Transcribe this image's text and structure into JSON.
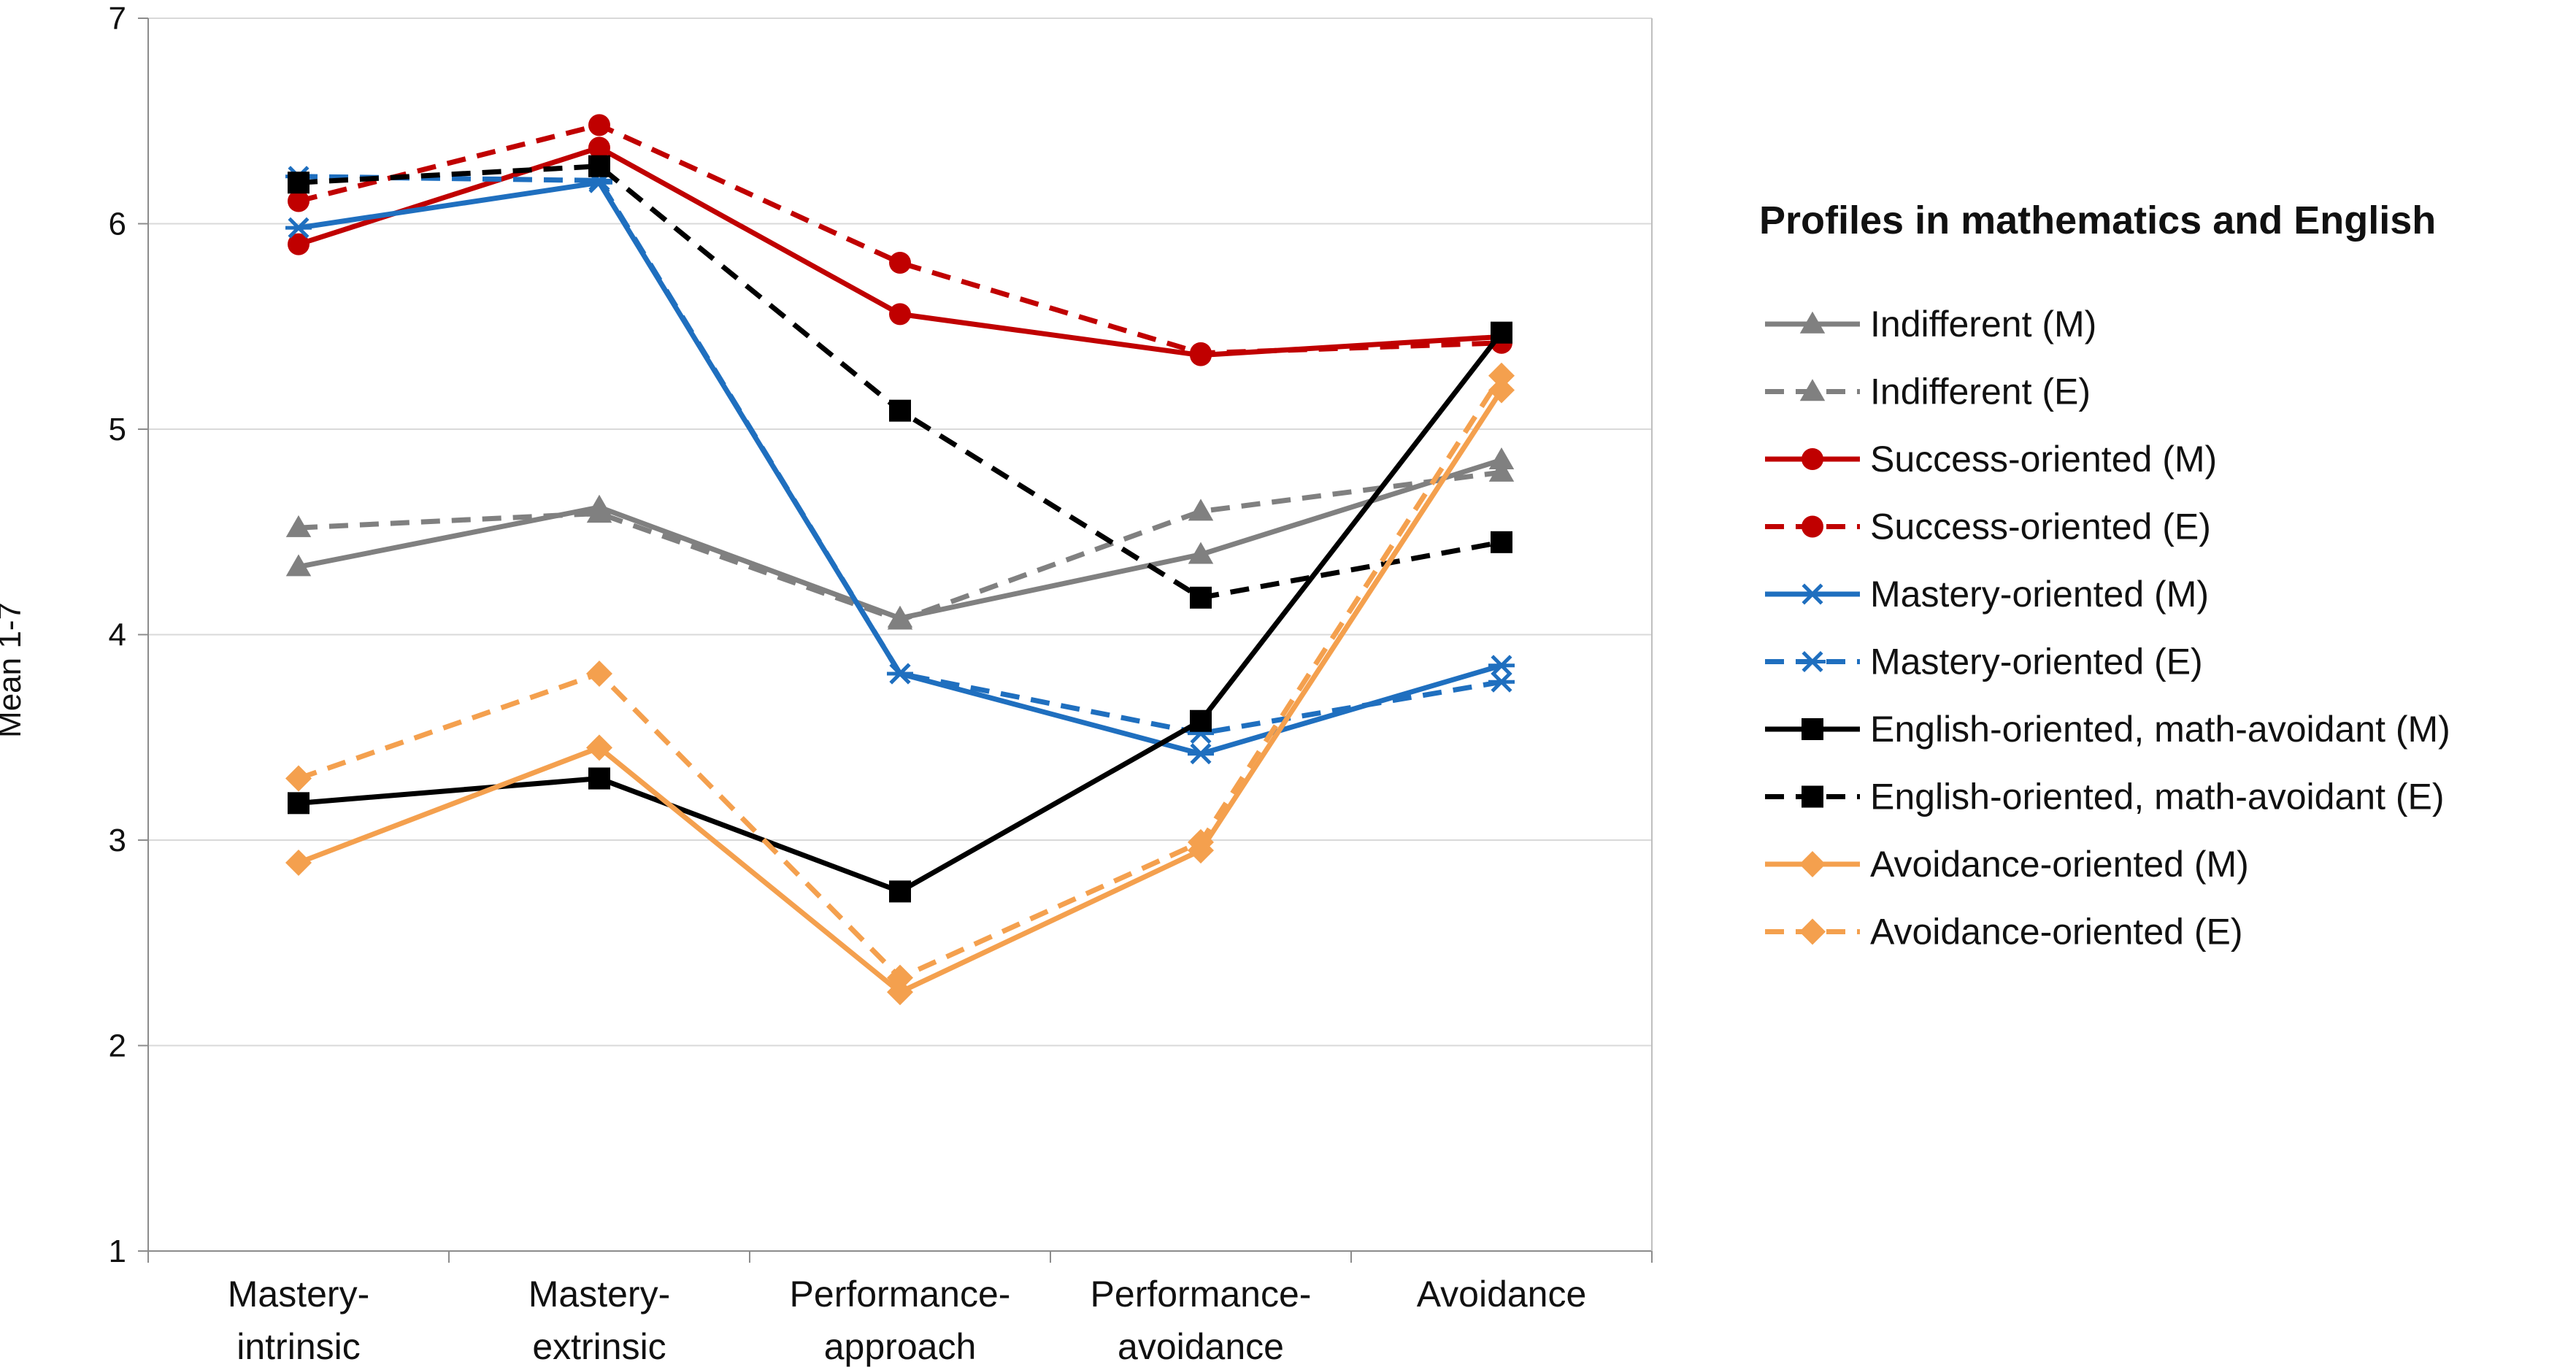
{
  "chart_data": {
    "type": "line",
    "title": "",
    "xlabel": "",
    "ylabel": "Mean 1-7",
    "ylim": [
      1,
      7
    ],
    "yticks": [
      1,
      2,
      3,
      4,
      5,
      6,
      7
    ],
    "grid": true,
    "categories": [
      [
        "Mastery-",
        "intrinsic"
      ],
      [
        "Mastery-",
        "extrinsic"
      ],
      [
        "Performance-",
        "approach"
      ],
      [
        "Performance-",
        "avoidance"
      ],
      [
        "Avoidance"
      ]
    ],
    "legend_title": "Profiles in mathematics and English",
    "legend_position": "right",
    "series": [
      {
        "name": "Indifferent (M)",
        "color": "#808080",
        "dash": "solid",
        "marker": "triangle",
        "values": [
          4.33,
          4.62,
          4.08,
          4.39,
          4.85
        ]
      },
      {
        "name": "Indifferent (E)",
        "color": "#808080",
        "dash": "dashed",
        "marker": "triangle",
        "values": [
          4.52,
          4.59,
          4.07,
          4.6,
          4.79
        ]
      },
      {
        "name": "Success-oriented (M)",
        "color": "#C00000",
        "dash": "solid",
        "marker": "circle",
        "values": [
          5.9,
          6.37,
          5.56,
          5.36,
          5.45
        ]
      },
      {
        "name": "Success-oriented (E)",
        "color": "#C00000",
        "dash": "dashed",
        "marker": "circle",
        "values": [
          6.11,
          6.48,
          5.81,
          5.37,
          5.42
        ]
      },
      {
        "name": "Mastery-oriented (M)",
        "color": "#1F6FBF",
        "dash": "solid",
        "marker": "asterisk",
        "values": [
          5.98,
          6.2,
          3.81,
          3.42,
          3.85
        ]
      },
      {
        "name": "Mastery-oriented (E)",
        "color": "#1F6FBF",
        "dash": "dashed",
        "marker": "asterisk",
        "values": [
          6.23,
          6.21,
          3.81,
          3.52,
          3.77
        ]
      },
      {
        "name": "English-oriented, math-avoidant (M)",
        "color": "#000000",
        "dash": "solid",
        "marker": "square",
        "values": [
          3.18,
          3.3,
          2.75,
          3.58,
          5.47
        ]
      },
      {
        "name": "English-oriented, math-avoidant (E)",
        "color": "#000000",
        "dash": "dashed",
        "marker": "square",
        "values": [
          6.2,
          6.28,
          5.09,
          4.18,
          4.45
        ]
      },
      {
        "name": "Avoidance-oriented (M)",
        "color": "#F4A04E",
        "dash": "solid",
        "marker": "diamond",
        "values": [
          2.89,
          3.45,
          2.26,
          2.95,
          5.19
        ]
      },
      {
        "name": "Avoidance-oriented (E)",
        "color": "#F4A04E",
        "dash": "dashed",
        "marker": "diamond",
        "values": [
          3.3,
          3.81,
          2.33,
          2.99,
          5.26
        ]
      }
    ]
  }
}
